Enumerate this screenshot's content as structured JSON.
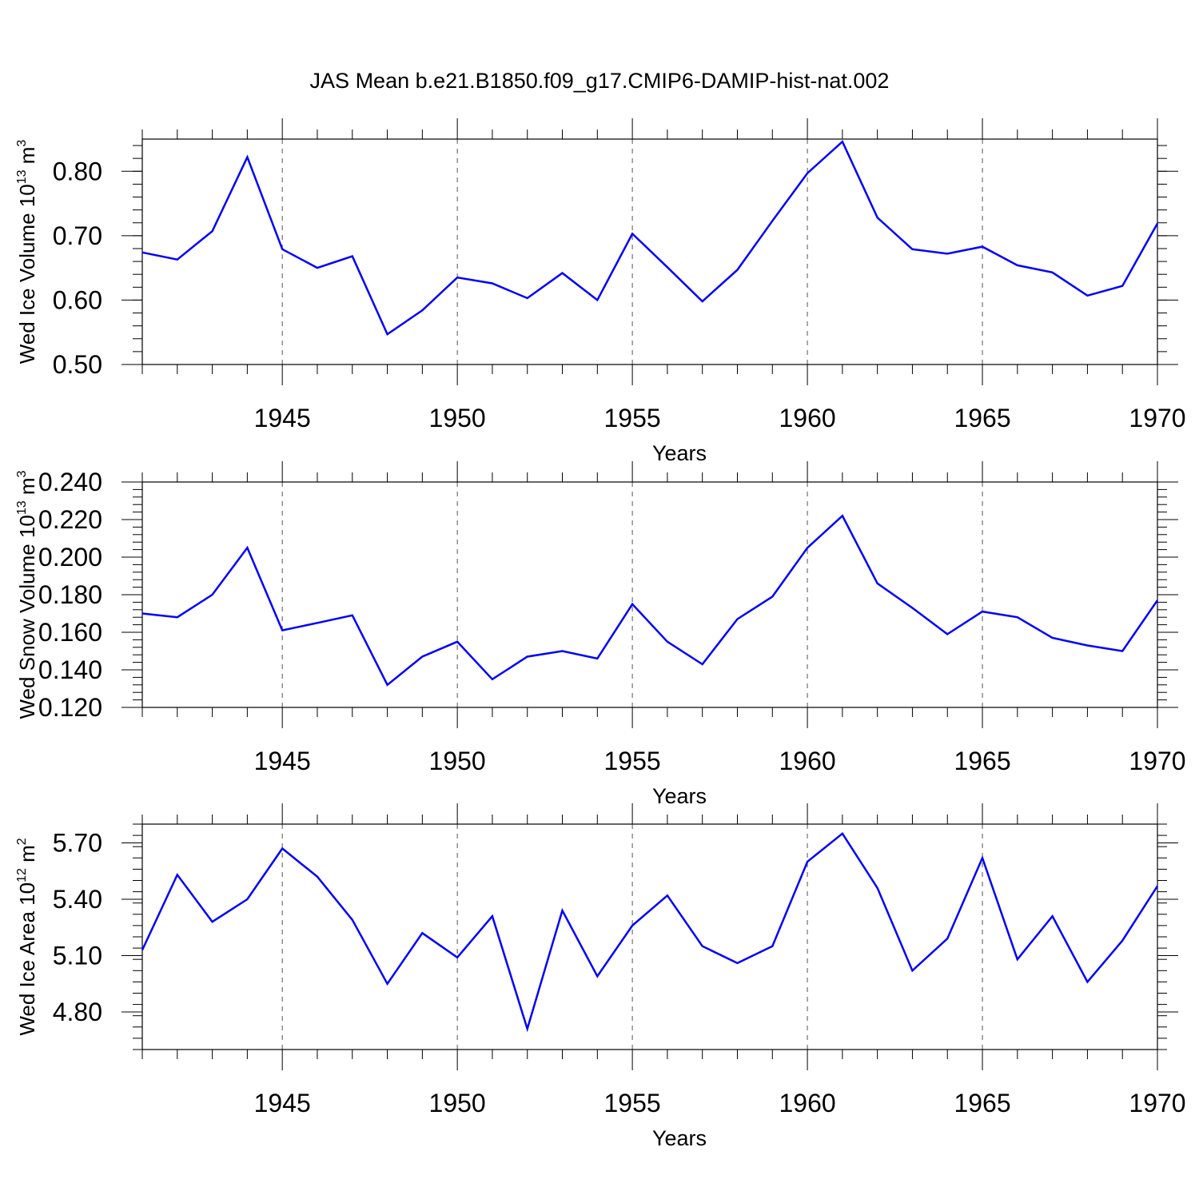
{
  "title": "JAS Mean b.e21.B1850.f09_g17.CMIP6-DAMIP-hist-nat.002",
  "series_color": "#0000ff",
  "chart_data": [
    {
      "type": "line",
      "ylabel_main": "Wed Ice Volume 10",
      "ylabel_exp": "13",
      "ylabel_unit": " m",
      "ylabel_unit_exp": "3",
      "xlabel": "Years",
      "xlim": [
        1941,
        1970
      ],
      "ylim": [
        0.5,
        0.85
      ],
      "yticks": [
        0.5,
        0.6,
        0.7,
        0.8
      ],
      "ytick_labels": [
        "0.50",
        "0.60",
        "0.70",
        "0.80"
      ],
      "yminor_step": 0.02,
      "xticks": [
        1945,
        1950,
        1955,
        1960,
        1965,
        1970
      ],
      "xtick_labels": [
        "1945",
        "1950",
        "1955",
        "1960",
        "1965",
        "1970"
      ],
      "x": [
        1941,
        1942,
        1943,
        1944,
        1945,
        1946,
        1947,
        1948,
        1949,
        1950,
        1951,
        1952,
        1953,
        1954,
        1955,
        1956,
        1957,
        1958,
        1959,
        1960,
        1961,
        1962,
        1963,
        1964,
        1965,
        1966,
        1967,
        1968,
        1969,
        1970
      ],
      "values": [
        0.674,
        0.663,
        0.707,
        0.822,
        0.679,
        0.65,
        0.668,
        0.547,
        0.584,
        0.635,
        0.626,
        0.603,
        0.642,
        0.6,
        0.703,
        0.651,
        0.598,
        0.647,
        0.723,
        0.797,
        0.846,
        0.728,
        0.679,
        0.672,
        0.683,
        0.654,
        0.643,
        0.607,
        0.622,
        0.719
      ]
    },
    {
      "type": "line",
      "ylabel_main": "Wed Snow Volume 10",
      "ylabel_exp": "13",
      "ylabel_unit": " m",
      "ylabel_unit_exp": "3",
      "xlabel": "Years",
      "xlim": [
        1941,
        1970
      ],
      "ylim": [
        0.12,
        0.24
      ],
      "yticks": [
        0.12,
        0.14,
        0.16,
        0.18,
        0.2,
        0.22,
        0.24
      ],
      "ytick_labels": [
        "0.120",
        "0.140",
        "0.160",
        "0.180",
        "0.200",
        "0.220",
        "0.240"
      ],
      "yminor_step": 0.004,
      "xticks": [
        1945,
        1950,
        1955,
        1960,
        1965,
        1970
      ],
      "xtick_labels": [
        "1945",
        "1950",
        "1955",
        "1960",
        "1965",
        "1970"
      ],
      "x": [
        1941,
        1942,
        1943,
        1944,
        1945,
        1946,
        1947,
        1948,
        1949,
        1950,
        1951,
        1952,
        1953,
        1954,
        1955,
        1956,
        1957,
        1958,
        1959,
        1960,
        1961,
        1962,
        1963,
        1964,
        1965,
        1966,
        1967,
        1968,
        1969,
        1970
      ],
      "values": [
        0.17,
        0.168,
        0.18,
        0.205,
        0.161,
        0.165,
        0.169,
        0.132,
        0.147,
        0.155,
        0.135,
        0.147,
        0.15,
        0.146,
        0.175,
        0.155,
        0.143,
        0.167,
        0.179,
        0.205,
        0.222,
        0.186,
        0.173,
        0.159,
        0.171,
        0.168,
        0.157,
        0.153,
        0.15,
        0.177
      ]
    },
    {
      "type": "line",
      "ylabel_main": "Wed Ice Area 10",
      "ylabel_exp": "12",
      "ylabel_unit": " m",
      "ylabel_unit_exp": "2",
      "xlabel": "Years",
      "xlim": [
        1941,
        1970
      ],
      "ylim": [
        4.6,
        5.8
      ],
      "yticks": [
        4.8,
        5.1,
        5.4,
        5.7
      ],
      "ytick_labels": [
        "4.80",
        "5.10",
        "5.40",
        "5.70"
      ],
      "yminor_step": 0.06,
      "xticks": [
        1945,
        1950,
        1955,
        1960,
        1965,
        1970
      ],
      "xtick_labels": [
        "1945",
        "1950",
        "1955",
        "1960",
        "1965",
        "1970"
      ],
      "x": [
        1941,
        1942,
        1943,
        1944,
        1945,
        1946,
        1947,
        1948,
        1949,
        1950,
        1951,
        1952,
        1953,
        1954,
        1955,
        1956,
        1957,
        1958,
        1959,
        1960,
        1961,
        1962,
        1963,
        1964,
        1965,
        1966,
        1967,
        1968,
        1969,
        1970
      ],
      "values": [
        5.13,
        5.53,
        5.28,
        5.4,
        5.67,
        5.52,
        5.29,
        4.95,
        5.22,
        5.09,
        5.31,
        4.71,
        5.34,
        4.99,
        5.26,
        5.42,
        5.15,
        5.06,
        5.15,
        5.6,
        5.75,
        5.46,
        5.02,
        5.19,
        5.62,
        5.08,
        5.31,
        4.96,
        5.18,
        5.47
      ]
    }
  ]
}
